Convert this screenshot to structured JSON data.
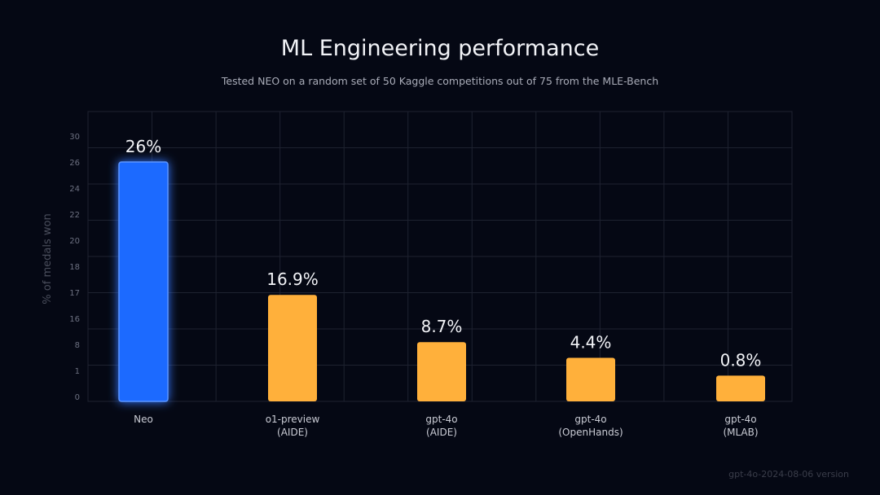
{
  "colors": {
    "background": "#050814",
    "neo_bar": "#1f6bff",
    "other_bars": "#ffb03b",
    "grid": "#1e2230"
  },
  "footnote": "gpt-4o-2024-08-06 version",
  "chart_data": {
    "type": "bar",
    "title": "ML Engineering performance",
    "subtitle": "Tested NEO on a random set of 50 Kaggle competitions out of 75 from the MLE-Bench",
    "ylabel": "% of medals won",
    "xlabel": "",
    "yticks": [
      "0",
      "1",
      "8",
      "16",
      "17",
      "18",
      "20",
      "22",
      "24",
      "26",
      "30"
    ],
    "ylim": [
      0,
      30
    ],
    "grid": true,
    "categories": [
      [
        "Neo"
      ],
      [
        "o1-preview",
        "(AIDE)"
      ],
      [
        "gpt-4o",
        "(AIDE)"
      ],
      [
        "gpt-4o",
        "(OpenHands)"
      ],
      [
        "gpt-4o",
        "(MLAB)"
      ]
    ],
    "values": [
      26,
      16.9,
      8.7,
      4.4,
      0.8
    ],
    "data_labels": [
      "26%",
      "16.9%",
      "8.7%",
      "4.4%",
      "0.8%"
    ]
  }
}
